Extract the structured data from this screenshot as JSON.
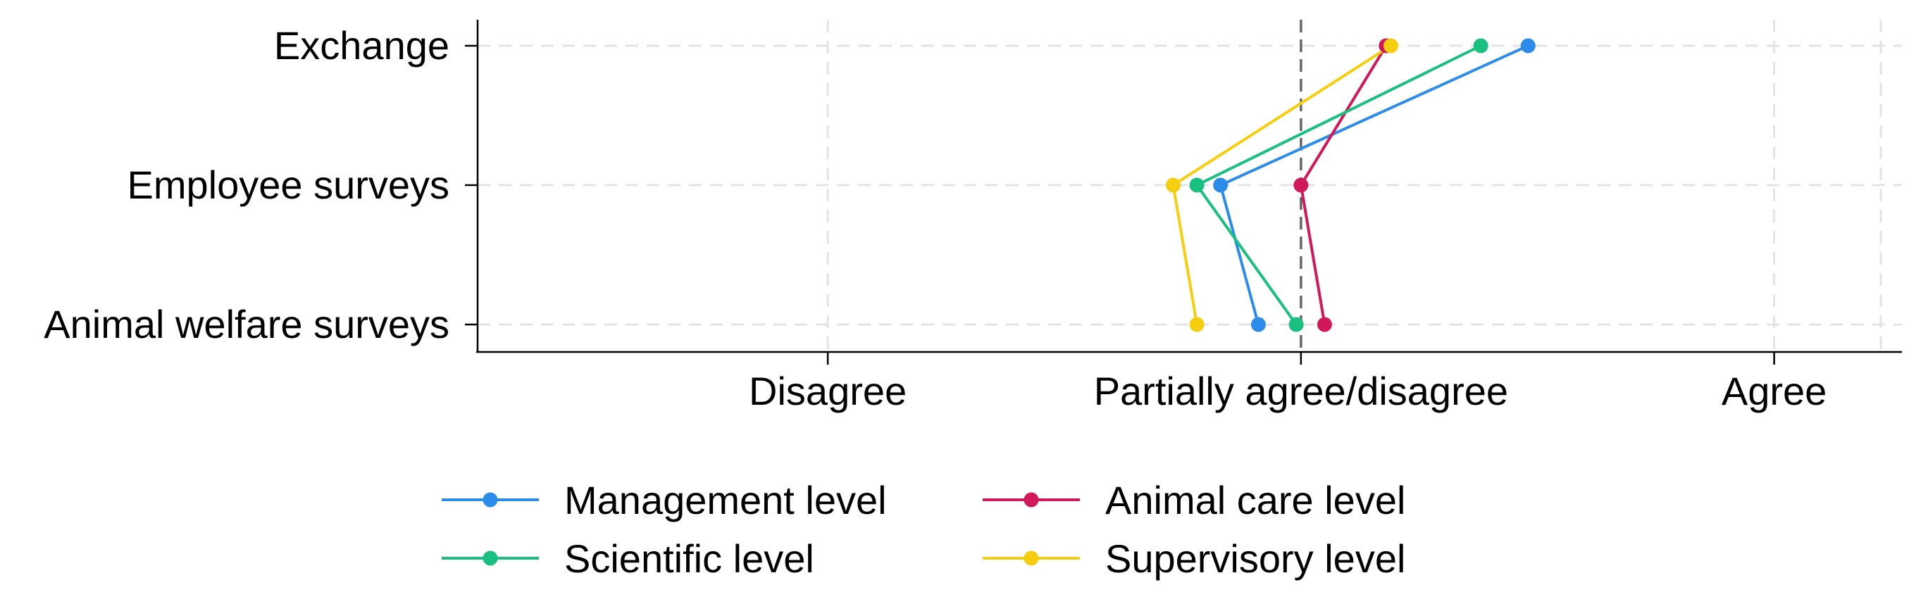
{
  "chart_data": {
    "type": "line",
    "orientation": "horizontal",
    "title": "",
    "xlabel": "",
    "ylabel": "",
    "categories": [
      "Exchange",
      "Employee surveys",
      "Animal welfare surveys"
    ],
    "x_tick_labels": [
      "Disagree",
      "Partially agree/disagree",
      "Agree"
    ],
    "x_ticks": [
      1,
      2,
      3
    ],
    "xlim": [
      0.26,
      3.27
    ],
    "reference_line": 2,
    "grid": true,
    "legend_position": "bottom",
    "series": [
      {
        "name": "Management level",
        "color": "#2b8cea",
        "values": [
          2.48,
          1.83,
          1.91
        ]
      },
      {
        "name": "Animal care level",
        "color": "#d0185a",
        "values": [
          2.18,
          2.0,
          2.05
        ]
      },
      {
        "name": "Scientific level",
        "color": "#19c07f",
        "values": [
          2.38,
          1.78,
          1.99
        ]
      },
      {
        "name": "Supervisory level",
        "color": "#f5cf0f",
        "values": [
          2.19,
          1.73,
          1.78
        ]
      }
    ]
  }
}
